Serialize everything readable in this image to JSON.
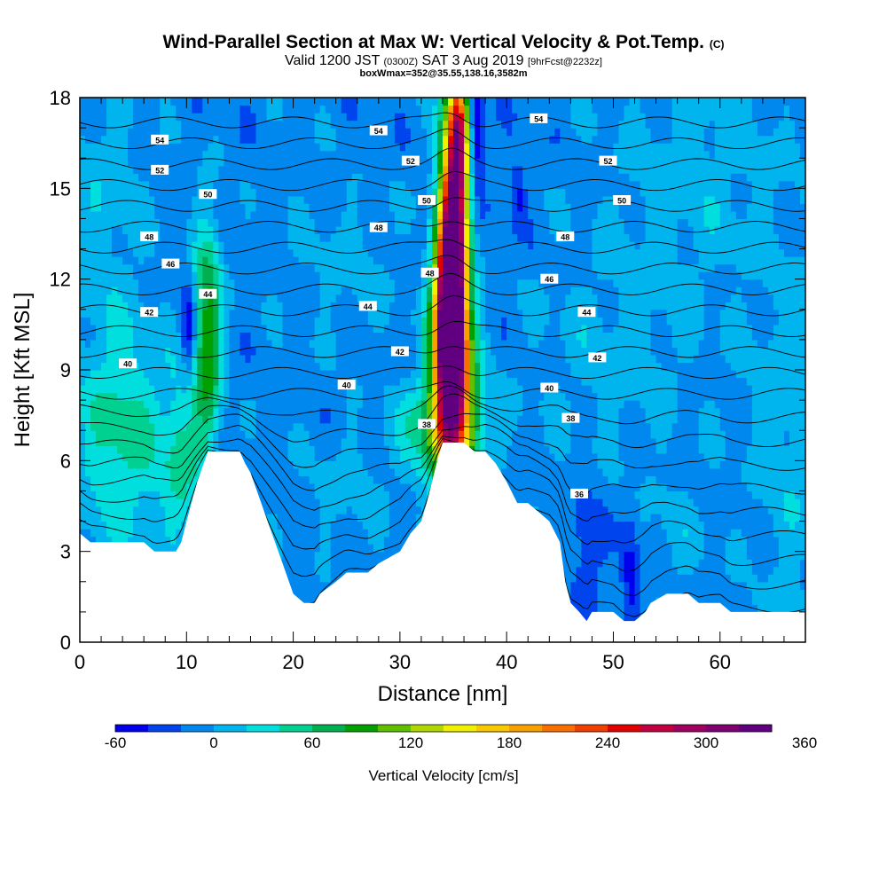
{
  "header": {
    "title": "Wind-Parallel Section at Max W: Vertical Velocity & Pot.Temp.",
    "title_mark": "(C)",
    "valid_prefix": "Valid 1200 JST",
    "valid_utc": "(0300Z)",
    "valid_date": "SAT 3 Aug 2019",
    "forecast": "[9hrFcst@2232z]",
    "box_info": "boxWmax=352@35.55,138.16,3582m"
  },
  "chart_data": {
    "type": "heatmap",
    "xlabel": "Distance [nm]",
    "ylabel": "Height [Kft MSL]",
    "xlim": [
      0,
      68
    ],
    "ylim": [
      0,
      18
    ],
    "x_ticks": [
      0,
      10,
      20,
      30,
      40,
      50,
      60
    ],
    "y_ticks": [
      0,
      3,
      6,
      9,
      12,
      15,
      18
    ],
    "colorbar": {
      "label": "Vertical Velocity [cm/s]",
      "tick_labels": [
        "-60",
        "0",
        "60",
        "120",
        "180",
        "240",
        "300",
        "360"
      ],
      "levels_min": -60,
      "levels_step": 20,
      "colors": [
        "#0000ee",
        "#0044ee",
        "#0088ee",
        "#00b4ee",
        "#00dede",
        "#00d090",
        "#00b050",
        "#00a000",
        "#60c000",
        "#b0d800",
        "#f0f000",
        "#f8c800",
        "#f8a000",
        "#f87000",
        "#f04000",
        "#e00000",
        "#c00040",
        "#a00060",
        "#800070",
        "#600080"
      ]
    },
    "background_value": -10,
    "terrain_kft": [
      [
        0,
        3.6
      ],
      [
        1,
        3.3
      ],
      [
        4,
        3.3
      ],
      [
        6,
        3.3
      ],
      [
        7,
        3.0
      ],
      [
        9,
        3.0
      ],
      [
        9.5,
        3.3
      ],
      [
        10,
        4.0
      ],
      [
        11,
        5.3
      ],
      [
        12,
        6.3
      ],
      [
        15,
        6.3
      ],
      [
        15.5,
        5.9
      ],
      [
        16,
        5.6
      ],
      [
        17,
        4.6
      ],
      [
        18,
        3.6
      ],
      [
        19,
        2.6
      ],
      [
        20,
        1.6
      ],
      [
        21,
        1.3
      ],
      [
        22,
        1.3
      ],
      [
        22.5,
        1.6
      ],
      [
        24,
        2.0
      ],
      [
        25,
        2.3
      ],
      [
        27,
        2.3
      ],
      [
        28,
        2.6
      ],
      [
        30,
        3.0
      ],
      [
        31,
        3.6
      ],
      [
        32,
        4.0
      ],
      [
        32.5,
        4.6
      ],
      [
        33,
        5.3
      ],
      [
        33.5,
        6.0
      ],
      [
        34,
        6.6
      ],
      [
        36,
        6.6
      ],
      [
        37,
        6.3
      ],
      [
        38,
        6.3
      ],
      [
        39,
        5.9
      ],
      [
        40,
        5.3
      ],
      [
        41,
        4.6
      ],
      [
        42,
        4.6
      ],
      [
        43,
        4.3
      ],
      [
        44,
        4.0
      ],
      [
        45,
        3.3
      ],
      [
        45.5,
        2.0
      ],
      [
        46,
        1.3
      ],
      [
        46.8,
        1.0
      ],
      [
        47.5,
        0.7
      ],
      [
        48,
        1.0
      ],
      [
        49,
        1.0
      ],
      [
        50,
        1.0
      ],
      [
        51,
        0.7
      ],
      [
        52,
        0.7
      ],
      [
        53,
        1.0
      ],
      [
        53.5,
        1.3
      ],
      [
        55,
        1.6
      ],
      [
        57,
        1.6
      ],
      [
        58,
        1.3
      ],
      [
        60,
        1.3
      ],
      [
        61,
        1.0
      ],
      [
        68,
        1.0
      ]
    ],
    "w_features": [
      {
        "name": "updraft-core-low",
        "x": 35.0,
        "y": 8.0,
        "sx": 1.4,
        "sy": 2.2,
        "amp": 170
      },
      {
        "name": "updraft-core-mid",
        "x": 34.6,
        "y": 10.6,
        "sx": 1.0,
        "sy": 2.2,
        "amp": 310
      },
      {
        "name": "updraft-core-upper",
        "x": 35.0,
        "y": 13.8,
        "sx": 0.9,
        "sy": 3.0,
        "amp": 290
      },
      {
        "name": "updraft-core-top",
        "x": 35.5,
        "y": 16.8,
        "sx": 0.6,
        "sy": 1.5,
        "amp": 180
      },
      {
        "name": "updraft-base",
        "x": 34.0,
        "y": 7.0,
        "sx": 2.8,
        "sy": 1.2,
        "amp": 75
      },
      {
        "name": "downdraft-east-top",
        "x": 37.2,
        "y": 17.0,
        "sx": 0.5,
        "sy": 1.2,
        "amp": -70
      },
      {
        "name": "updraft-west-ridge",
        "x": 12.0,
        "y": 10.0,
        "sx": 0.9,
        "sy": 2.6,
        "amp": 110
      },
      {
        "name": "downdraft-west-ridge",
        "x": 10.2,
        "y": 10.3,
        "sx": 0.5,
        "sy": 1.1,
        "amp": -50
      },
      {
        "name": "updraft-west-low",
        "x": 4.0,
        "y": 6.8,
        "sx": 3.0,
        "sy": 2.5,
        "amp": 60
      },
      {
        "name": "updraft-west-mid",
        "x": 9.5,
        "y": 6.0,
        "sx": 1.2,
        "sy": 2.0,
        "amp": 50
      },
      {
        "name": "weak-updraft-upper-left",
        "x": 2.0,
        "y": 14.5,
        "sx": 3.0,
        "sy": 3.0,
        "amp": 22
      },
      {
        "name": "weak-updraft-upper-right",
        "x": 58.0,
        "y": 15.5,
        "sx": 6.0,
        "sy": 3.0,
        "amp": 20
      },
      {
        "name": "weak-updraft-mid-right",
        "x": 50.0,
        "y": 9.5,
        "sx": 6.0,
        "sy": 2.5,
        "amp": 18
      },
      {
        "name": "weak-updraft-right-edge",
        "x": 67.0,
        "y": 6.5,
        "sx": 3.0,
        "sy": 4.0,
        "amp": 25
      },
      {
        "name": "weak-updraft-valley",
        "x": 25.0,
        "y": 5.0,
        "sx": 3.0,
        "sy": 1.5,
        "amp": 15
      },
      {
        "name": "weak-updraft-center",
        "x": 25.0,
        "y": 12.5,
        "sx": 4.0,
        "sy": 2.0,
        "amp": 14
      },
      {
        "name": "downdraft-valley-east",
        "x": 47.5,
        "y": 3.0,
        "sx": 1.0,
        "sy": 1.5,
        "amp": -30
      },
      {
        "name": "downdraft-valley-east2",
        "x": 51.6,
        "y": 2.3,
        "sx": 0.6,
        "sy": 1.4,
        "amp": -45
      },
      {
        "name": "downdraft-upper",
        "x": 41.0,
        "y": 14.8,
        "sx": 0.5,
        "sy": 0.8,
        "amp": -40
      },
      {
        "name": "updraft-lee-lower",
        "x": 56.0,
        "y": 3.5,
        "sx": 2.5,
        "sy": 1.5,
        "amp": 15
      }
    ],
    "theta": {
      "levels": [
        34,
        35,
        36,
        37,
        38,
        39,
        40,
        41,
        42,
        43,
        44,
        45,
        46,
        47,
        48,
        49,
        50,
        51,
        52,
        53,
        54,
        55,
        56
      ],
      "base_height_kft": 2.0,
      "kft_per_level": 0.69,
      "labels": [
        {
          "text": "54",
          "x": 7.5,
          "y": 16.6
        },
        {
          "text": "54",
          "x": 28,
          "y": 16.9
        },
        {
          "text": "54",
          "x": 43,
          "y": 17.3
        },
        {
          "text": "52",
          "x": 7.5,
          "y": 15.6
        },
        {
          "text": "52",
          "x": 31,
          "y": 15.9
        },
        {
          "text": "52",
          "x": 49.5,
          "y": 15.9
        },
        {
          "text": "50",
          "x": 12,
          "y": 14.8
        },
        {
          "text": "50",
          "x": 32.5,
          "y": 14.6
        },
        {
          "text": "50",
          "x": 50.8,
          "y": 14.6
        },
        {
          "text": "48",
          "x": 6.5,
          "y": 13.4
        },
        {
          "text": "48",
          "x": 28,
          "y": 13.7
        },
        {
          "text": "48",
          "x": 45.5,
          "y": 13.4
        },
        {
          "text": "48",
          "x": 32.8,
          "y": 12.2
        },
        {
          "text": "46",
          "x": 8.5,
          "y": 12.5
        },
        {
          "text": "46",
          "x": 44,
          "y": 12.0
        },
        {
          "text": "44",
          "x": 12,
          "y": 11.5
        },
        {
          "text": "44",
          "x": 27,
          "y": 11.1
        },
        {
          "text": "44",
          "x": 47.5,
          "y": 10.9
        },
        {
          "text": "42",
          "x": 6.5,
          "y": 10.9
        },
        {
          "text": "42",
          "x": 30,
          "y": 9.6
        },
        {
          "text": "42",
          "x": 48.5,
          "y": 9.4
        },
        {
          "text": "40",
          "x": 4.5,
          "y": 9.2
        },
        {
          "text": "40",
          "x": 25,
          "y": 8.5
        },
        {
          "text": "40",
          "x": 44,
          "y": 8.4
        },
        {
          "text": "38",
          "x": 32.5,
          "y": 7.2
        },
        {
          "text": "38",
          "x": 46,
          "y": 7.4
        },
        {
          "text": "36",
          "x": 46.8,
          "y": 4.9
        }
      ]
    }
  }
}
